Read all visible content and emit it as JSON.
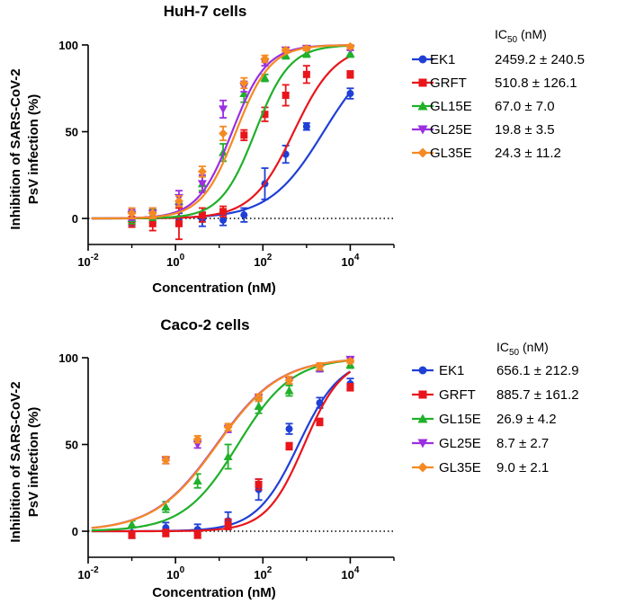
{
  "chart_data": [
    {
      "type": "scatter",
      "title": "HuH-7 cells",
      "xlabel": "Concentration (nM)",
      "ylabel": "Inhibition of SARS-CoV-2 PsV  infection (%)",
      "ylabel_lines": [
        "Inhibition of SARS-CoV-2",
        "PsV  infection (%)"
      ],
      "x_scale": "log",
      "xlim": [
        0.01,
        100000
      ],
      "ylim": [
        -15,
        100
      ],
      "x_ticks": [
        {
          "value": 0.01,
          "base": "10",
          "exp": "-2"
        },
        {
          "value": 1,
          "base": "10",
          "exp": "0"
        },
        {
          "value": 100,
          "base": "10",
          "exp": "2"
        },
        {
          "value": 10000,
          "base": "10",
          "exp": "4"
        }
      ],
      "y_ticks": [
        {
          "value": 0,
          "label": "0"
        },
        {
          "value": 50,
          "label": "50"
        },
        {
          "value": 100,
          "label": "100"
        }
      ],
      "reference_line_y": 0,
      "legend_header": {
        "main": "IC",
        "sub": "50",
        "unit": " (nM)"
      },
      "series": [
        {
          "name": "EK1",
          "marker": "circle",
          "color": "#1f3fd6",
          "ic50": "2459.2 ± 240.5",
          "ic50_nM": 2459.2,
          "x": [
            0.1,
            0.3,
            1.2,
            4.1,
            12.3,
            37,
            111,
            333,
            1000,
            10000
          ],
          "y": [
            0,
            0.5,
            0,
            -0.5,
            -1,
            2,
            20,
            37,
            53,
            72
          ],
          "err": [
            4,
            3,
            3,
            4,
            3,
            4,
            9,
            5,
            2,
            3
          ]
        },
        {
          "name": "GRFT",
          "marker": "square",
          "color": "#e8161b",
          "ic50": "510.8 ± 126.1",
          "ic50_nM": 510.8,
          "x": [
            0.1,
            0.3,
            1.2,
            4.1,
            12.3,
            37,
            111,
            333,
            1000,
            10000
          ],
          "y": [
            -2,
            -3,
            -3,
            2,
            4,
            48,
            60,
            71,
            83,
            83
          ],
          "err": [
            3,
            4,
            9,
            4,
            3,
            3,
            4,
            6,
            5,
            2
          ]
        },
        {
          "name": "GL15E",
          "marker": "triangle",
          "color": "#20b02a",
          "ic50": "67.0 ± 7.0",
          "ic50_nM": 67.0,
          "x": [
            0.1,
            0.3,
            1.2,
            4.1,
            12.3,
            37,
            111,
            333,
            1000,
            10000
          ],
          "y": [
            0,
            2,
            10,
            20,
            38,
            72,
            81,
            94,
            95,
            95
          ],
          "err": [
            3,
            3,
            3,
            4,
            5,
            5,
            2,
            2,
            2,
            2
          ]
        },
        {
          "name": "GL25E",
          "marker": "triangle-down",
          "color": "#9b2fe0",
          "ic50": "19.8 ± 3.5",
          "ic50_nM": 19.8,
          "x": [
            0.1,
            0.3,
            1.2,
            4.1,
            12.3,
            37,
            111,
            333,
            1000,
            10000
          ],
          "y": [
            2,
            3,
            12,
            20,
            63,
            76,
            90,
            97,
            98,
            98
          ],
          "err": [
            3,
            3,
            4,
            5,
            5,
            3,
            2,
            1,
            1,
            1
          ]
        },
        {
          "name": "GL35E",
          "marker": "diamond",
          "color": "#f58a22",
          "ic50": "24.3 ± 11.2",
          "ic50_nM": 24.3,
          "x": [
            0.1,
            0.3,
            1.2,
            4.1,
            12.3,
            37,
            111,
            333,
            1000,
            10000
          ],
          "y": [
            3,
            3,
            10,
            27,
            49,
            78,
            92,
            97,
            98,
            99
          ],
          "err": [
            3,
            3,
            3,
            3,
            4,
            3,
            2,
            1,
            1,
            1
          ]
        }
      ]
    },
    {
      "type": "scatter",
      "title": "Caco-2 cells",
      "xlabel": "Concentration (nM)",
      "ylabel": "Inhibition of SARS-CoV-2 PsV  infection (%)",
      "ylabel_lines": [
        "Inhibition of SARS-CoV-2",
        "PsV  infection (%)"
      ],
      "x_scale": "log",
      "xlim": [
        0.01,
        100000
      ],
      "ylim": [
        -15,
        100
      ],
      "x_ticks": [
        {
          "value": 0.01,
          "base": "10",
          "exp": "-2"
        },
        {
          "value": 1,
          "base": "10",
          "exp": "0"
        },
        {
          "value": 100,
          "base": "10",
          "exp": "2"
        },
        {
          "value": 10000,
          "base": "10",
          "exp": "4"
        }
      ],
      "y_ticks": [
        {
          "value": 0,
          "label": "0"
        },
        {
          "value": 50,
          "label": "50"
        },
        {
          "value": 100,
          "label": "100"
        }
      ],
      "reference_line_y": 0,
      "legend_header": {
        "main": "IC",
        "sub": "50",
        "unit": " (nM)"
      },
      "series": [
        {
          "name": "EK1",
          "marker": "circle",
          "color": "#1f3fd6",
          "ic50": "656.1 ± 212.9",
          "ic50_nM": 656.1,
          "x": [
            0.1,
            0.6,
            3.2,
            16,
            80,
            400,
            2000,
            10000
          ],
          "y": [
            -1,
            2,
            1,
            6,
            24,
            59,
            74,
            85
          ],
          "err": [
            3,
            3,
            3,
            5,
            6,
            3,
            3,
            3
          ]
        },
        {
          "name": "GRFT",
          "marker": "square",
          "color": "#e8161b",
          "ic50": "885.7 ± 161.2",
          "ic50_nM": 885.7,
          "x": [
            0.1,
            0.6,
            3.2,
            16,
            80,
            400,
            2000,
            10000
          ],
          "y": [
            -2,
            -1,
            -2,
            4,
            27,
            49,
            63,
            83
          ],
          "err": [
            2,
            2,
            2,
            3,
            3,
            2,
            2,
            2
          ]
        },
        {
          "name": "GL15E",
          "marker": "triangle",
          "color": "#20b02a",
          "ic50": "26.9 ± 4.2",
          "ic50_nM": 26.9,
          "x": [
            0.1,
            0.6,
            3.2,
            16,
            80,
            400,
            2000,
            10000
          ],
          "y": [
            4,
            14,
            29,
            43,
            72,
            81,
            94,
            96
          ],
          "err": [
            2,
            3,
            4,
            7,
            4,
            3,
            2,
            2
          ]
        },
        {
          "name": "GL25E",
          "marker": "triangle-down",
          "color": "#9b2fe0",
          "ic50": "8.7 ± 2.7",
          "ic50_nM": 8.7,
          "x": [
            0.1,
            0.6,
            3.2,
            16,
            80,
            400,
            2000,
            10000
          ],
          "y": [
            null,
            41,
            50,
            59,
            77,
            87,
            94,
            99
          ],
          "err": [
            2,
            2,
            2,
            2,
            2,
            2,
            2,
            1
          ]
        },
        {
          "name": "GL35E",
          "marker": "diamond",
          "color": "#f58a22",
          "ic50": "9.0 ± 2.1",
          "ic50_nM": 9.0,
          "x": [
            0.1,
            0.6,
            3.2,
            16,
            80,
            400,
            2000,
            10000
          ],
          "y": [
            null,
            41,
            53,
            60,
            77,
            87,
            95,
            98
          ],
          "err": [
            2,
            2,
            2,
            2,
            2,
            2,
            2,
            1
          ]
        }
      ]
    }
  ]
}
